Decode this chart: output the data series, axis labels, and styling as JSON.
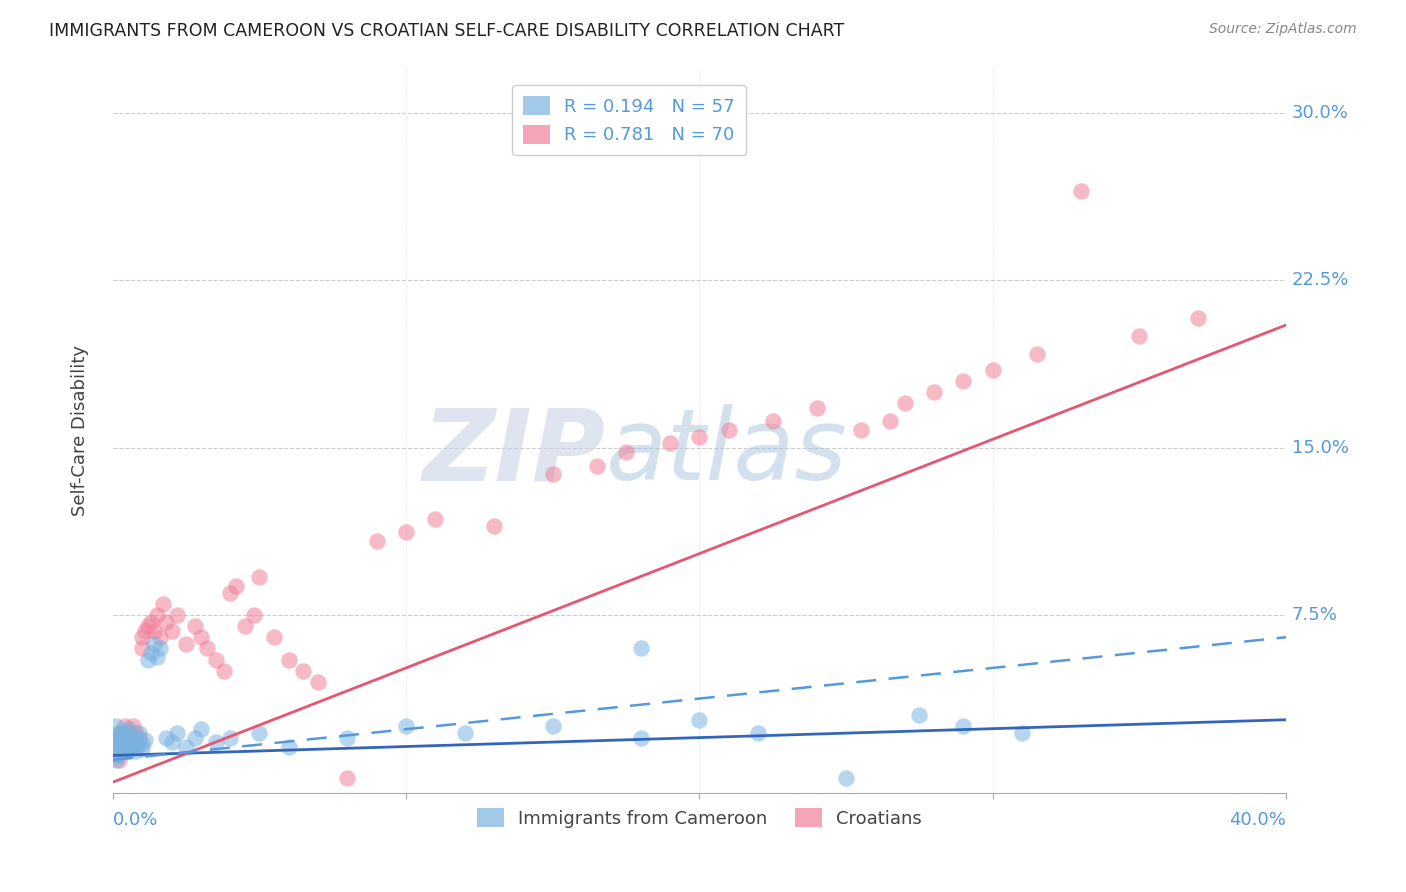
{
  "title": "IMMIGRANTS FROM CAMEROON VS CROATIAN SELF-CARE DISABILITY CORRELATION CHART",
  "source": "Source: ZipAtlas.com",
  "ylabel": "Self-Care Disability",
  "ytick_vals": [
    0.075,
    0.15,
    0.225,
    0.3
  ],
  "ytick_labels": [
    "7.5%",
    "15.0%",
    "22.5%",
    "30.0%"
  ],
  "xlim": [
    0.0,
    0.4
  ],
  "ylim": [
    -0.005,
    0.32
  ],
  "legend_series": [
    "Immigrants from Cameroon",
    "Croatians"
  ],
  "cameroon_color": "#7ab3e0",
  "croatian_color": "#f08098",
  "cameroon_R": 0.194,
  "cameroon_N": 57,
  "croatian_R": 0.781,
  "croatian_N": 70,
  "cameroon_scatter_x": [
    0.001,
    0.001,
    0.001,
    0.001,
    0.002,
    0.002,
    0.002,
    0.002,
    0.003,
    0.003,
    0.003,
    0.003,
    0.004,
    0.004,
    0.004,
    0.005,
    0.005,
    0.005,
    0.006,
    0.006,
    0.006,
    0.007,
    0.007,
    0.008,
    0.008,
    0.009,
    0.009,
    0.01,
    0.01,
    0.011,
    0.012,
    0.013,
    0.014,
    0.015,
    0.016,
    0.018,
    0.02,
    0.022,
    0.025,
    0.028,
    0.03,
    0.035,
    0.04,
    0.05,
    0.06,
    0.08,
    0.1,
    0.12,
    0.15,
    0.18,
    0.2,
    0.22,
    0.25,
    0.275,
    0.29,
    0.31,
    0.18
  ],
  "cameroon_scatter_y": [
    0.02,
    0.015,
    0.025,
    0.01,
    0.018,
    0.022,
    0.015,
    0.012,
    0.02,
    0.017,
    0.023,
    0.014,
    0.019,
    0.016,
    0.022,
    0.018,
    0.014,
    0.024,
    0.017,
    0.021,
    0.015,
    0.019,
    0.016,
    0.02,
    0.014,
    0.018,
    0.022,
    0.017,
    0.015,
    0.019,
    0.055,
    0.058,
    0.062,
    0.056,
    0.06,
    0.02,
    0.018,
    0.022,
    0.016,
    0.02,
    0.024,
    0.018,
    0.02,
    0.022,
    0.016,
    0.02,
    0.025,
    0.022,
    0.025,
    0.02,
    0.028,
    0.022,
    0.002,
    0.03,
    0.025,
    0.022,
    0.06
  ],
  "croatian_scatter_x": [
    0.001,
    0.001,
    0.002,
    0.002,
    0.002,
    0.003,
    0.003,
    0.003,
    0.004,
    0.004,
    0.005,
    0.005,
    0.005,
    0.006,
    0.006,
    0.007,
    0.007,
    0.008,
    0.008,
    0.009,
    0.01,
    0.01,
    0.011,
    0.012,
    0.013,
    0.014,
    0.015,
    0.016,
    0.017,
    0.018,
    0.02,
    0.022,
    0.025,
    0.028,
    0.03,
    0.032,
    0.035,
    0.038,
    0.04,
    0.042,
    0.045,
    0.048,
    0.05,
    0.055,
    0.06,
    0.065,
    0.07,
    0.08,
    0.09,
    0.1,
    0.11,
    0.13,
    0.15,
    0.165,
    0.175,
    0.19,
    0.2,
    0.21,
    0.225,
    0.24,
    0.255,
    0.265,
    0.27,
    0.28,
    0.29,
    0.3,
    0.315,
    0.33,
    0.35,
    0.37
  ],
  "croatian_scatter_y": [
    0.012,
    0.018,
    0.015,
    0.02,
    0.01,
    0.016,
    0.022,
    0.014,
    0.019,
    0.025,
    0.018,
    0.022,
    0.015,
    0.02,
    0.016,
    0.025,
    0.018,
    0.022,
    0.016,
    0.02,
    0.06,
    0.065,
    0.068,
    0.07,
    0.072,
    0.068,
    0.075,
    0.065,
    0.08,
    0.072,
    0.068,
    0.075,
    0.062,
    0.07,
    0.065,
    0.06,
    0.055,
    0.05,
    0.085,
    0.088,
    0.07,
    0.075,
    0.092,
    0.065,
    0.055,
    0.05,
    0.045,
    0.002,
    0.108,
    0.112,
    0.118,
    0.115,
    0.138,
    0.142,
    0.148,
    0.152,
    0.155,
    0.158,
    0.162,
    0.168,
    0.158,
    0.162,
    0.17,
    0.175,
    0.18,
    0.185,
    0.192,
    0.265,
    0.2,
    0.208
  ],
  "cam_line_x0": 0.0,
  "cam_line_y0": 0.012,
  "cam_line_x1": 0.4,
  "cam_line_y1": 0.028,
  "cro_line_x0": 0.0,
  "cro_line_y0": 0.0,
  "cro_line_x1": 0.4,
  "cro_line_y1": 0.205,
  "dash_line_x0": 0.0,
  "dash_line_y0": 0.01,
  "dash_line_x1": 0.4,
  "dash_line_y1": 0.065,
  "watermark_zip": "ZIP",
  "watermark_atlas": "atlas",
  "bg_color": "#ffffff",
  "grid_color": "#cccccc",
  "title_color": "#222222",
  "tick_label_color": "#5599dd"
}
